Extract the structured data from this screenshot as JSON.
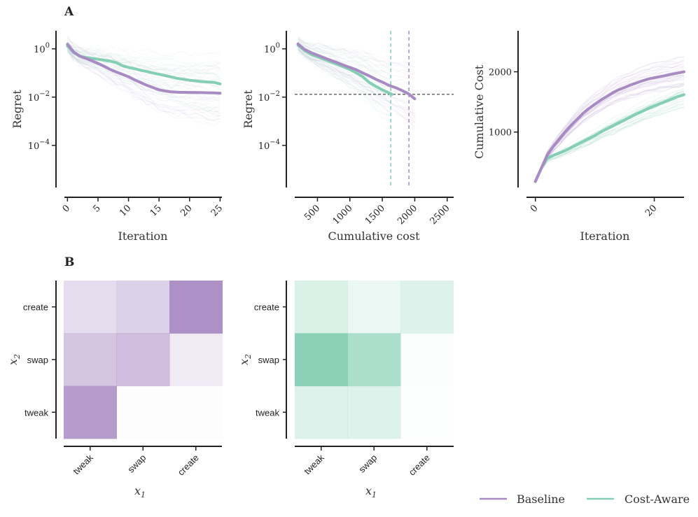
{
  "colors": {
    "baseline": "#a98bc3",
    "cost_aware": "#84cfb4"
  },
  "legend": {
    "baseline": "Baseline",
    "cost_aware": "Cost-Aware"
  },
  "panel_labels": {
    "a": "A",
    "b": "B"
  },
  "chart_data": [
    {
      "id": "regret-vs-iteration",
      "type": "line",
      "title": "",
      "xlabel": "Iteration",
      "ylabel": "Regret",
      "xscale": "linear",
      "yscale": "log",
      "xlim": [
        -0.5,
        25.3
      ],
      "ylim": [
        1.8e-06,
        5.6
      ],
      "xticks": [
        0,
        5,
        10,
        15,
        20,
        25
      ],
      "xtick_labels": [
        "0",
        "5",
        "10",
        "15",
        "20",
        "25"
      ],
      "yticks": [
        1,
        0.01,
        0.0001
      ],
      "ytick_labels": [
        {
          "base": "10",
          "exp": "0"
        },
        {
          "base": "10",
          "exp": "−2"
        },
        {
          "base": "10",
          "exp": "−4"
        }
      ],
      "series": [
        {
          "name": "Baseline",
          "x": [
            0,
            1,
            2,
            3,
            4,
            5,
            6,
            7,
            8,
            9,
            10,
            11,
            12,
            13,
            14,
            15,
            16,
            17,
            18,
            19,
            20,
            21,
            22,
            23,
            24,
            25
          ],
          "y": [
            1.55,
            0.75,
            0.5,
            0.4,
            0.32,
            0.25,
            0.19,
            0.14,
            0.11,
            0.088,
            0.07,
            0.052,
            0.04,
            0.031,
            0.025,
            0.02,
            0.018,
            0.0165,
            0.016,
            0.0158,
            0.0156,
            0.0155,
            0.0153,
            0.0151,
            0.015,
            0.0145
          ]
        },
        {
          "name": "Cost-Aware",
          "x": [
            0,
            1,
            2,
            3,
            4,
            5,
            6,
            7,
            8,
            9,
            10,
            11,
            12,
            13,
            14,
            15,
            16,
            17,
            18,
            19,
            20,
            21,
            22,
            23,
            24,
            25
          ],
          "y": [
            1.3,
            0.7,
            0.5,
            0.44,
            0.4,
            0.37,
            0.34,
            0.31,
            0.27,
            0.2,
            0.17,
            0.15,
            0.13,
            0.115,
            0.1,
            0.088,
            0.078,
            0.068,
            0.06,
            0.055,
            0.05,
            0.047,
            0.044,
            0.042,
            0.041,
            0.035
          ]
        }
      ]
    },
    {
      "id": "regret-vs-cost",
      "type": "line",
      "title": "",
      "xlabel": "Cumulative cost",
      "ylabel": "Regret",
      "xscale": "linear",
      "yscale": "log",
      "xlim": [
        150,
        2600
      ],
      "ylim": [
        1.8e-06,
        5.6
      ],
      "xticks": [
        500,
        1000,
        1500,
        2000,
        2500
      ],
      "xtick_labels": [
        "500",
        "1000",
        "1500",
        "2000",
        "2500"
      ],
      "yticks": [
        1,
        0.01,
        0.0001
      ],
      "ytick_labels": [
        {
          "base": "10",
          "exp": "0"
        },
        {
          "base": "10",
          "exp": "−2"
        },
        {
          "base": "10",
          "exp": "−4"
        }
      ],
      "threshold_y": 0.013,
      "vlines": {
        "Cost-Aware": 1630,
        "Baseline": 1910
      },
      "series": [
        {
          "name": "Baseline",
          "x": [
            200,
            300,
            400,
            500,
            600,
            700,
            800,
            900,
            1000,
            1100,
            1200,
            1300,
            1400,
            1500,
            1600,
            1700,
            1800,
            1900,
            1950,
            2000
          ],
          "y": [
            1.6,
            0.95,
            0.7,
            0.55,
            0.43,
            0.34,
            0.27,
            0.21,
            0.17,
            0.135,
            0.1,
            0.075,
            0.055,
            0.042,
            0.031,
            0.025,
            0.019,
            0.014,
            0.011,
            0.0085
          ]
        },
        {
          "name": "Cost-Aware",
          "x": [
            200,
            300,
            400,
            500,
            600,
            700,
            800,
            900,
            1000,
            1100,
            1200,
            1300,
            1400,
            1500,
            1600,
            1650
          ],
          "y": [
            1.4,
            0.85,
            0.6,
            0.47,
            0.37,
            0.29,
            0.23,
            0.18,
            0.14,
            0.1,
            0.07,
            0.04,
            0.028,
            0.02,
            0.015,
            0.013
          ]
        }
      ]
    },
    {
      "id": "cumcost-vs-iteration",
      "type": "line",
      "title": "",
      "xlabel": "Iteration",
      "ylabel": "Cumulative Cost",
      "xscale": "linear",
      "yscale": "linear",
      "xlim": [
        -1.5,
        25
      ],
      "ylim": [
        80,
        2680
      ],
      "xticks": [
        0,
        20
      ],
      "xtick_labels": [
        "0",
        "20"
      ],
      "yticks": [
        1000,
        2000
      ],
      "ytick_labels": [
        "1000",
        "2000"
      ],
      "series": [
        {
          "name": "Baseline",
          "x": [
            0,
            1,
            2,
            3,
            4,
            5,
            6,
            7,
            8,
            9,
            10,
            11,
            12,
            13,
            14,
            15,
            16,
            17,
            18,
            19,
            20,
            21,
            22,
            23,
            24,
            25
          ],
          "y": [
            180,
            400,
            620,
            760,
            880,
            1000,
            1110,
            1210,
            1310,
            1390,
            1460,
            1530,
            1590,
            1650,
            1700,
            1740,
            1780,
            1815,
            1850,
            1880,
            1900,
            1920,
            1940,
            1960,
            1980,
            2000
          ]
        },
        {
          "name": "Cost-Aware",
          "x": [
            0,
            1,
            2,
            3,
            4,
            5,
            6,
            7,
            8,
            9,
            10,
            11,
            12,
            13,
            14,
            15,
            16,
            17,
            18,
            19,
            20,
            21,
            22,
            23,
            24,
            25
          ],
          "y": [
            180,
            400,
            560,
            610,
            650,
            690,
            740,
            790,
            840,
            890,
            940,
            1000,
            1050,
            1100,
            1150,
            1200,
            1250,
            1300,
            1345,
            1390,
            1430,
            1470,
            1510,
            1550,
            1590,
            1620
          ]
        }
      ]
    },
    {
      "id": "heatmap-baseline",
      "type": "heatmap",
      "title": "",
      "xlabel": "x1",
      "ylabel": "x2",
      "colormap": "Baseline",
      "x_categories": [
        "tweak",
        "swap",
        "create"
      ],
      "y_categories": [
        "create",
        "swap",
        "tweak"
      ],
      "values": [
        [
          0.3,
          0.4,
          0.95
        ],
        [
          0.5,
          0.57,
          0.18
        ],
        [
          0.85,
          0.0,
          0.01
        ]
      ]
    },
    {
      "id": "heatmap-cost-aware",
      "type": "heatmap",
      "title": "",
      "xlabel": "x1",
      "ylabel": "x2",
      "colormap": "Cost-Aware",
      "x_categories": [
        "tweak",
        "swap",
        "create"
      ],
      "y_categories": [
        "create",
        "swap",
        "tweak"
      ],
      "values": [
        [
          0.3,
          0.16,
          0.28
        ],
        [
          0.95,
          0.68,
          0.03
        ],
        [
          0.28,
          0.28,
          0.0
        ]
      ]
    }
  ]
}
